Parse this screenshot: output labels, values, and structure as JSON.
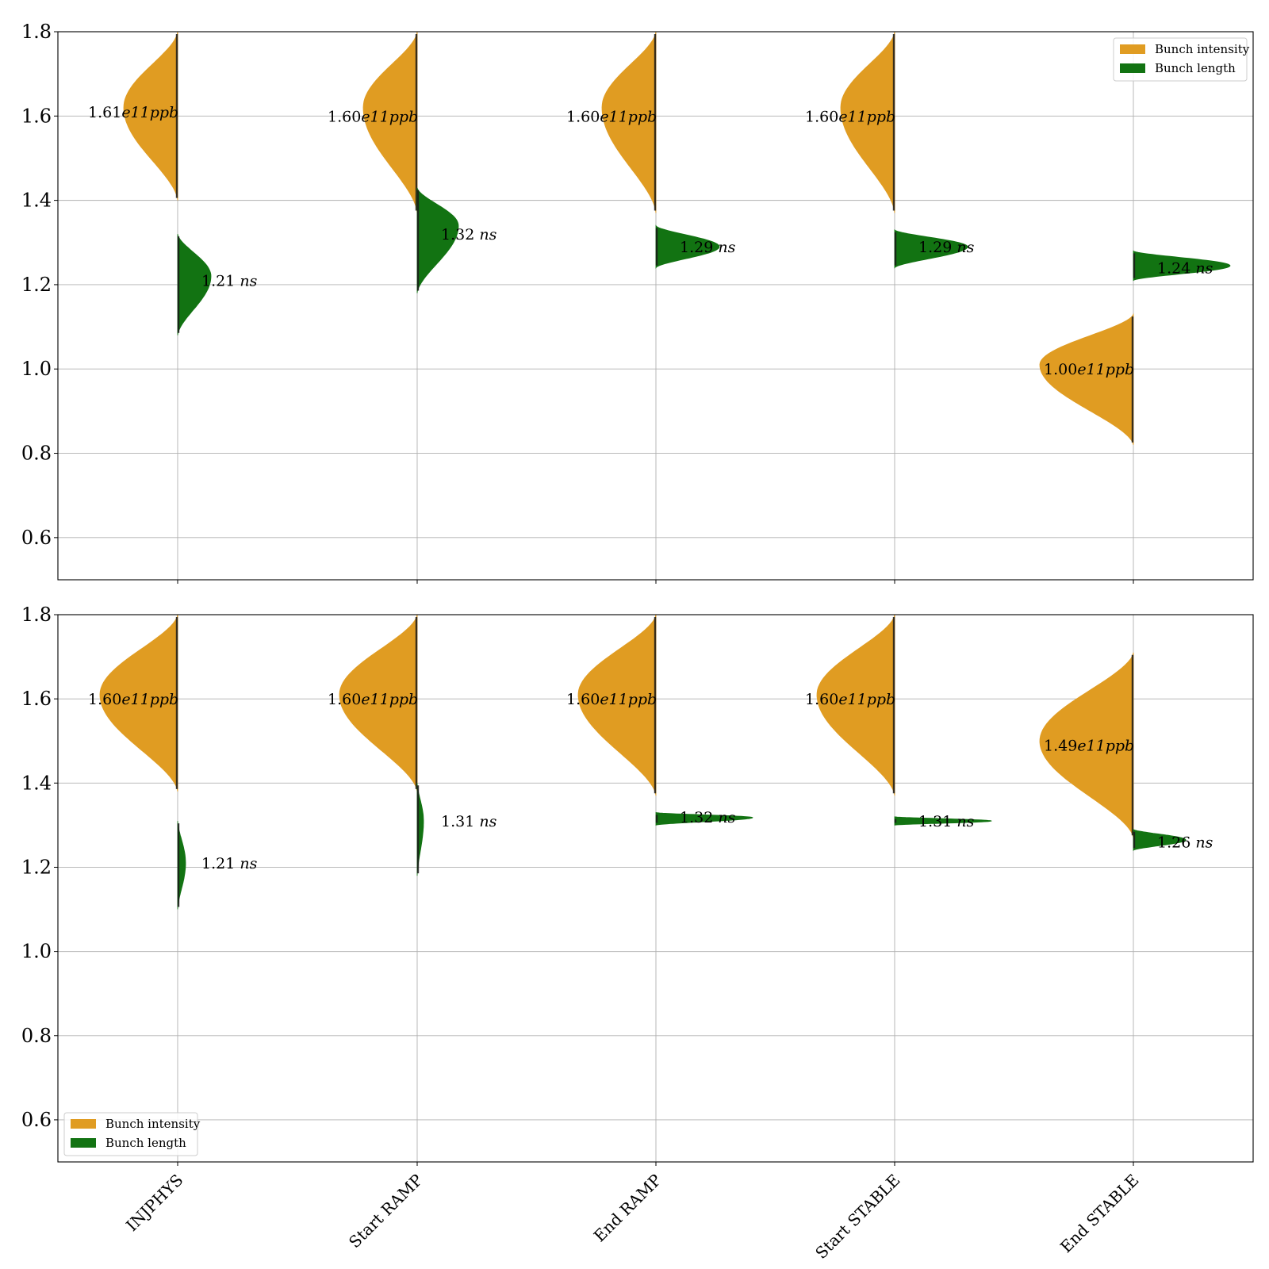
{
  "colors": {
    "intensity": "#E09C22",
    "length": "#127312",
    "grid": "#b0b0b0",
    "axes": "#000000"
  },
  "chart_data": [
    {
      "type": "violin",
      "categories": [
        "INJPHYS",
        "Start RAMP",
        "End RAMP",
        "Start STABLE",
        "End STABLE"
      ],
      "ylim": [
        0.5,
        1.8
      ],
      "yticks": [
        "0.6",
        "0.8",
        "1.0",
        "1.2",
        "1.4",
        "1.6",
        "1.8"
      ],
      "grid": "horizontal",
      "legend": {
        "placement": "upper right",
        "entries": [
          "Bunch intensity",
          "Bunch length"
        ]
      },
      "series": [
        {
          "name": "Bunch intensity",
          "side": "left",
          "values_at_label": [
            1.61,
            1.6,
            1.6,
            1.6,
            1.0
          ],
          "ranges": [
            [
              1.4,
              1.8
            ],
            [
              1.37,
              1.8
            ],
            [
              1.37,
              1.8
            ],
            [
              1.37,
              1.8
            ],
            [
              0.82,
              1.13
            ]
          ],
          "peaks": [
            1.62,
            1.62,
            1.62,
            1.62,
            1.01
          ],
          "labels": [
            {
              "num": "1.61",
              "unit": "e11ppb"
            },
            {
              "num": "1.60",
              "unit": "e11ppb"
            },
            {
              "num": "1.60",
              "unit": "e11ppb"
            },
            {
              "num": "1.60",
              "unit": "e11ppb"
            },
            {
              "num": "1.00",
              "unit": "e11ppb"
            }
          ]
        },
        {
          "name": "Bunch length",
          "side": "right",
          "values_at_label": [
            1.21,
            1.32,
            1.29,
            1.29,
            1.24
          ],
          "ranges": [
            [
              1.08,
              1.32
            ],
            [
              1.18,
              1.43
            ],
            [
              1.24,
              1.34
            ],
            [
              1.24,
              1.33
            ],
            [
              1.21,
              1.28
            ]
          ],
          "peaks": [
            1.22,
            1.34,
            1.29,
            1.29,
            1.245
          ],
          "labels": [
            {
              "num": "1.21",
              "unit": "ns"
            },
            {
              "num": "1.32",
              "unit": "ns"
            },
            {
              "num": "1.29",
              "unit": "ns"
            },
            {
              "num": "1.29",
              "unit": "ns"
            },
            {
              "num": "1.24",
              "unit": "ns"
            }
          ]
        }
      ]
    },
    {
      "type": "violin",
      "categories": [
        "INJPHYS",
        "Start RAMP",
        "End RAMP",
        "Start STABLE",
        "End STABLE"
      ],
      "ylim": [
        0.5,
        1.8
      ],
      "yticks": [
        "0.6",
        "0.8",
        "1.0",
        "1.2",
        "1.4",
        "1.6",
        "1.8"
      ],
      "grid": "horizontal",
      "legend": {
        "placement": "lower left",
        "entries": [
          "Bunch intensity",
          "Bunch length"
        ]
      },
      "series": [
        {
          "name": "Bunch intensity",
          "side": "left",
          "values_at_label": [
            1.6,
            1.6,
            1.6,
            1.6,
            1.49
          ],
          "ranges": [
            [
              1.38,
              1.8
            ],
            [
              1.38,
              1.8
            ],
            [
              1.37,
              1.8
            ],
            [
              1.37,
              1.8
            ],
            [
              1.27,
              1.71
            ]
          ],
          "peaks": [
            1.61,
            1.61,
            1.61,
            1.61,
            1.5
          ],
          "labels": [
            {
              "num": "1.60",
              "unit": "e11ppb"
            },
            {
              "num": "1.60",
              "unit": "e11ppb"
            },
            {
              "num": "1.60",
              "unit": "e11ppb"
            },
            {
              "num": "1.60",
              "unit": "e11ppb"
            },
            {
              "num": "1.49",
              "unit": "e11ppb"
            }
          ]
        },
        {
          "name": "Bunch length",
          "side": "right",
          "values_at_label": [
            1.21,
            1.31,
            1.32,
            1.31,
            1.26
          ],
          "ranges": [
            [
              1.1,
              1.31
            ],
            [
              1.18,
              1.4
            ],
            [
              1.3,
              1.33
            ],
            [
              1.3,
              1.32
            ],
            [
              1.24,
              1.29
            ]
          ],
          "peaks": [
            1.21,
            1.31,
            1.318,
            1.31,
            1.265
          ],
          "labels": [
            {
              "num": "1.21",
              "unit": "ns"
            },
            {
              "num": "1.31",
              "unit": "ns"
            },
            {
              "num": "1.32",
              "unit": "ns"
            },
            {
              "num": "1.31",
              "unit": "ns"
            },
            {
              "num": "1.26",
              "unit": "ns"
            }
          ]
        }
      ]
    }
  ]
}
